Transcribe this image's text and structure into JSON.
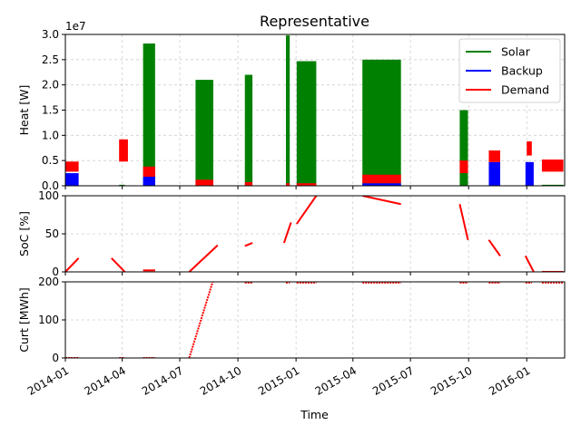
{
  "figure_title": "Representative",
  "x_axis_label": "Time",
  "x_ticks": [
    "2014-01",
    "2014-04",
    "2014-07",
    "2014-10",
    "2015-01",
    "2015-04",
    "2015-07",
    "2015-10",
    "2016-01"
  ],
  "colors": {
    "solar": "#008000",
    "backup": "#0000ff",
    "demand": "#ff0000",
    "grid": "#b0b0b0"
  },
  "chart_data": [
    {
      "type": "bar",
      "title": "Representative",
      "ylabel": "Heat [W]",
      "y_offset_label": "1e7",
      "ylim": [
        0,
        3.0
      ],
      "y_ticks": [
        "0.0",
        "0.5",
        "1.0",
        "1.5",
        "2.0",
        "2.5",
        "3.0"
      ],
      "grid": true,
      "legend_position": "top-right",
      "legend": [
        "Solar",
        "Backup",
        "Demand"
      ],
      "series": [
        {
          "name": "Solar",
          "color": "#008000",
          "blocks": [
            {
              "x0": "2014-03-27",
              "x1": "2014-04-05",
              "value": 0.02
            },
            {
              "x0": "2014-05-04",
              "x1": "2014-05-23",
              "value": 2.82
            },
            {
              "x0": "2014-07-26",
              "x1": "2014-08-23",
              "value": 2.1
            },
            {
              "x0": "2014-10-12",
              "x1": "2014-10-24",
              "value": 2.2
            },
            {
              "x0": "2014-12-16",
              "x1": "2014-12-22",
              "value": 2.98
            },
            {
              "x0": "2015-01-02",
              "x1": "2015-02-02",
              "value": 2.47
            },
            {
              "x0": "2015-04-16",
              "x1": "2015-06-16",
              "value": 2.5
            },
            {
              "x0": "2015-09-17",
              "x1": "2015-09-30",
              "value": 1.5
            },
            {
              "x0": "2015-12-30",
              "x1": "2016-01-05",
              "value": 0.02
            },
            {
              "x0": "2016-01-25",
              "x1": "2016-02-28",
              "value": 0.02
            }
          ]
        },
        {
          "name": "Backup",
          "color": "#0000ff",
          "blocks": [
            {
              "x0": "2014-01-01",
              "x1": "2014-01-22",
              "value": 0.25
            },
            {
              "x0": "2014-05-04",
              "x1": "2014-05-23",
              "value": 0.18
            },
            {
              "x0": "2015-04-16",
              "x1": "2015-06-16",
              "value": 0.05
            },
            {
              "x0": "2015-11-02",
              "x1": "2015-11-20",
              "value": 0.47
            },
            {
              "x0": "2015-12-30",
              "x1": "2016-01-12",
              "value": 0.47
            }
          ]
        },
        {
          "name": "Demand",
          "color": "#ff0000",
          "bands": [
            {
              "x0": "2014-01-01",
              "x1": "2014-01-22",
              "low": 0.28,
              "high": 0.48
            },
            {
              "x0": "2014-03-27",
              "x1": "2014-04-10",
              "low": 0.48,
              "high": 0.92
            },
            {
              "x0": "2014-05-04",
              "x1": "2014-05-23",
              "low": 0.18,
              "high": 0.38
            },
            {
              "x0": "2014-07-26",
              "x1": "2014-08-23",
              "low": 0.0,
              "high": 0.12
            },
            {
              "x0": "2014-10-12",
              "x1": "2014-10-24",
              "low": 0.0,
              "high": 0.07
            },
            {
              "x0": "2014-12-16",
              "x1": "2014-12-22",
              "low": 0.0,
              "high": 0.05
            },
            {
              "x0": "2015-01-02",
              "x1": "2015-02-02",
              "low": 0.0,
              "high": 0.05
            },
            {
              "x0": "2015-04-16",
              "x1": "2015-06-16",
              "low": 0.05,
              "high": 0.22
            },
            {
              "x0": "2015-09-17",
              "x1": "2015-09-30",
              "low": 0.25,
              "high": 0.5
            },
            {
              "x0": "2015-11-02",
              "x1": "2015-11-20",
              "low": 0.47,
              "high": 0.7
            },
            {
              "x0": "2016-01-01",
              "x1": "2016-01-09",
              "low": 0.6,
              "high": 0.88
            },
            {
              "x0": "2016-01-25",
              "x1": "2016-02-28",
              "low": 0.28,
              "high": 0.52
            }
          ]
        }
      ]
    },
    {
      "type": "line",
      "ylabel": "SoC [%]",
      "ylim": [
        0,
        100
      ],
      "y_ticks": [
        "0",
        "50",
        "100"
      ],
      "grid": true,
      "segments": [
        {
          "x": [
            "2014-01-01",
            "2014-01-22"
          ],
          "y": [
            0,
            18
          ]
        },
        {
          "x": [
            "2014-03-15",
            "2014-04-05"
          ],
          "y": [
            18,
            0
          ]
        },
        {
          "x": [
            "2014-05-04",
            "2014-05-23"
          ],
          "y": [
            2,
            2
          ]
        },
        {
          "x": [
            "2014-07-16",
            "2014-08-30"
          ],
          "y": [
            0,
            35
          ]
        },
        {
          "x": [
            "2014-10-12",
            "2014-10-24"
          ],
          "y": [
            34,
            38
          ]
        },
        {
          "x": [
            "2014-12-13",
            "2014-12-24"
          ],
          "y": [
            38,
            65
          ]
        },
        {
          "x": [
            "2015-01-02",
            "2015-02-02"
          ],
          "y": [
            63,
            100
          ]
        },
        {
          "x": [
            "2015-04-16",
            "2015-06-16"
          ],
          "y": [
            100,
            89
          ]
        },
        {
          "x": [
            "2015-09-17",
            "2015-09-30"
          ],
          "y": [
            89,
            42
          ]
        },
        {
          "x": [
            "2015-11-02",
            "2015-11-20"
          ],
          "y": [
            42,
            21
          ]
        },
        {
          "x": [
            "2015-12-30",
            "2016-01-12"
          ],
          "y": [
            21,
            0
          ]
        },
        {
          "x": [
            "2016-01-25",
            "2016-02-28"
          ],
          "y": [
            0,
            0
          ]
        }
      ]
    },
    {
      "type": "line",
      "ylabel": "Curt [MWh]",
      "ylim": [
        0,
        200
      ],
      "y_ticks": [
        "0",
        "100",
        "200"
      ],
      "grid": true,
      "segments": [
        {
          "x": [
            "2014-01-01",
            "2014-01-22"
          ],
          "y": [
            0,
            0
          ]
        },
        {
          "x": [
            "2014-03-27",
            "2014-04-05"
          ],
          "y": [
            0,
            0
          ]
        },
        {
          "x": [
            "2014-05-04",
            "2014-05-23"
          ],
          "y": [
            0,
            0
          ]
        },
        {
          "x": [
            "2014-07-16",
            "2014-08-23"
          ],
          "y": [
            0,
            205
          ]
        },
        {
          "x": [
            "2014-10-12",
            "2014-10-24"
          ],
          "y": [
            198,
            198
          ]
        },
        {
          "x": [
            "2014-12-16",
            "2014-12-22"
          ],
          "y": [
            198,
            198
          ]
        },
        {
          "x": [
            "2015-01-02",
            "2015-02-02"
          ],
          "y": [
            198,
            198
          ]
        },
        {
          "x": [
            "2015-04-16",
            "2015-06-16"
          ],
          "y": [
            198,
            198
          ]
        },
        {
          "x": [
            "2015-09-17",
            "2015-09-30"
          ],
          "y": [
            198,
            198
          ]
        },
        {
          "x": [
            "2015-11-02",
            "2015-11-20"
          ],
          "y": [
            198,
            198
          ]
        },
        {
          "x": [
            "2015-12-30",
            "2016-01-09"
          ],
          "y": [
            198,
            198
          ]
        },
        {
          "x": [
            "2016-01-25",
            "2016-02-28"
          ],
          "y": [
            198,
            198
          ]
        }
      ]
    }
  ]
}
